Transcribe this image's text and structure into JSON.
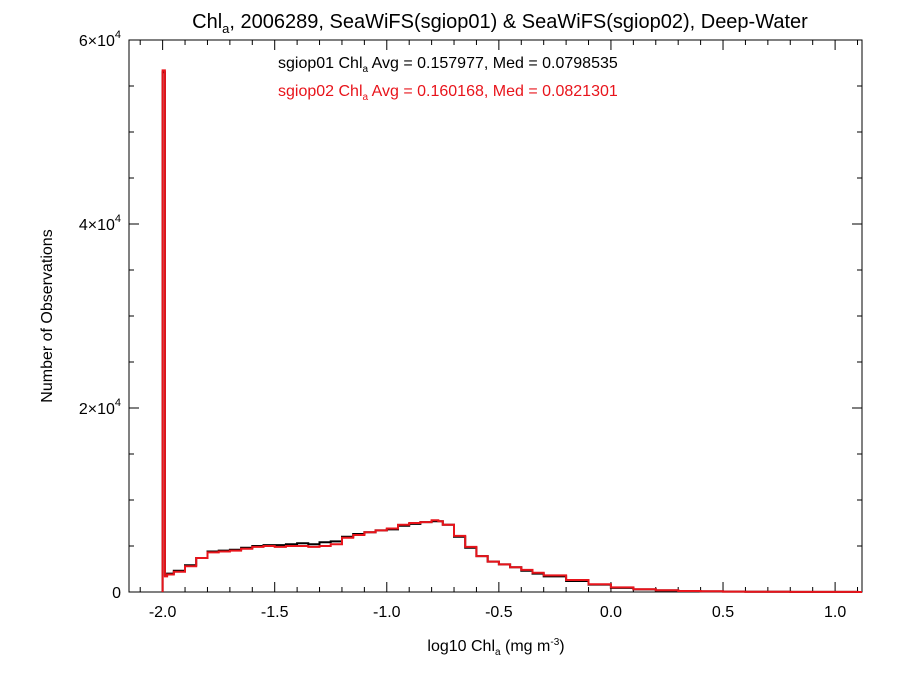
{
  "chart_data": {
    "type": "line",
    "title": {
      "pre": "Chl",
      "sub": "a",
      "post": ", 2006289, SeaWiFS(sgiop01) & SeaWiFS(sgiop02), Deep-Water"
    },
    "xlabel": {
      "pre": "log10 Chl",
      "sub": "a",
      "mid": " (mg m",
      "sup": "-3",
      "post": ")"
    },
    "ylabel": "Number of Observations",
    "xlim": [
      -2.15,
      1.12
    ],
    "ylim": [
      0,
      60000
    ],
    "x_ticks": [
      {
        "value": -2.0,
        "label": "-2.0"
      },
      {
        "value": -1.5,
        "label": "-1.5"
      },
      {
        "value": -1.0,
        "label": "-1.0"
      },
      {
        "value": -0.5,
        "label": "-0.5"
      },
      {
        "value": 0.0,
        "label": "0.0"
      },
      {
        "value": 0.5,
        "label": "0.5"
      },
      {
        "value": 1.0,
        "label": "1.0"
      }
    ],
    "y_ticks": [
      {
        "value": 0,
        "base": "0",
        "exp": ""
      },
      {
        "value": 20000,
        "base": "2×10",
        "exp": "4"
      },
      {
        "value": 40000,
        "base": "4×10",
        "exp": "4"
      },
      {
        "value": 60000,
        "base": "6×10",
        "exp": "4"
      }
    ],
    "annotations": [
      {
        "series": "sgiop01",
        "color": "#000000",
        "pre": "sgiop01 Chl",
        "sub": "a",
        "post": " Avg = 0.157977, Med = 0.0798535"
      },
      {
        "series": "sgiop02",
        "color": "#e8141b",
        "pre": "sgiop02 Chl",
        "sub": "a",
        "post": " Avg = 0.160168, Med = 0.0821301"
      }
    ],
    "series": [
      {
        "name": "sgiop01",
        "color": "#000000",
        "x": [
          -2.0,
          -1.99,
          -1.98,
          -1.95,
          -1.9,
          -1.85,
          -1.8,
          -1.75,
          -1.7,
          -1.65,
          -1.6,
          -1.55,
          -1.5,
          -1.45,
          -1.4,
          -1.35,
          -1.3,
          -1.25,
          -1.2,
          -1.15,
          -1.1,
          -1.05,
          -1.0,
          -0.95,
          -0.9,
          -0.85,
          -0.8,
          -0.77,
          -0.75,
          -0.7,
          -0.65,
          -0.6,
          -0.55,
          -0.5,
          -0.45,
          -0.4,
          -0.35,
          -0.3,
          -0.2,
          -0.1,
          0.0,
          0.1,
          0.2,
          0.3,
          0.4,
          0.5,
          0.6,
          0.7,
          0.8,
          0.9,
          1.0,
          1.1
        ],
        "y": [
          56500,
          1800,
          2000,
          2300,
          2900,
          3700,
          4400,
          4500,
          4600,
          4800,
          5000,
          5100,
          5100,
          5200,
          5300,
          5200,
          5400,
          5500,
          6000,
          6300,
          6500,
          6700,
          6800,
          7200,
          7400,
          7600,
          7700,
          7700,
          7300,
          6000,
          4800,
          3900,
          3300,
          3000,
          2700,
          2300,
          2000,
          1700,
          1200,
          800,
          450,
          280,
          170,
          100,
          70,
          40,
          30,
          20,
          15,
          10,
          8,
          5
        ]
      },
      {
        "name": "sgiop02",
        "color": "#e8141b",
        "x": [
          -2.0,
          -1.99,
          -1.98,
          -1.95,
          -1.9,
          -1.85,
          -1.8,
          -1.75,
          -1.7,
          -1.65,
          -1.6,
          -1.55,
          -1.5,
          -1.45,
          -1.4,
          -1.35,
          -1.3,
          -1.25,
          -1.2,
          -1.15,
          -1.1,
          -1.05,
          -1.0,
          -0.95,
          -0.9,
          -0.85,
          -0.8,
          -0.77,
          -0.75,
          -0.7,
          -0.65,
          -0.6,
          -0.55,
          -0.5,
          -0.45,
          -0.4,
          -0.35,
          -0.3,
          -0.2,
          -0.1,
          0.0,
          0.1,
          0.2,
          0.3,
          0.4,
          0.5,
          0.6,
          0.7,
          0.8,
          0.9,
          1.0,
          1.1
        ],
        "y": [
          56700,
          1700,
          1900,
          2200,
          2800,
          3700,
          4300,
          4400,
          4500,
          4700,
          4900,
          5000,
          4900,
          5000,
          5000,
          4900,
          5000,
          5200,
          5900,
          6200,
          6500,
          6700,
          6900,
          7300,
          7500,
          7600,
          7800,
          7700,
          7300,
          6100,
          4900,
          3900,
          3300,
          3000,
          2700,
          2400,
          2100,
          1800,
          1300,
          850,
          500,
          300,
          180,
          110,
          75,
          45,
          32,
          22,
          16,
          11,
          8,
          5
        ]
      }
    ]
  }
}
